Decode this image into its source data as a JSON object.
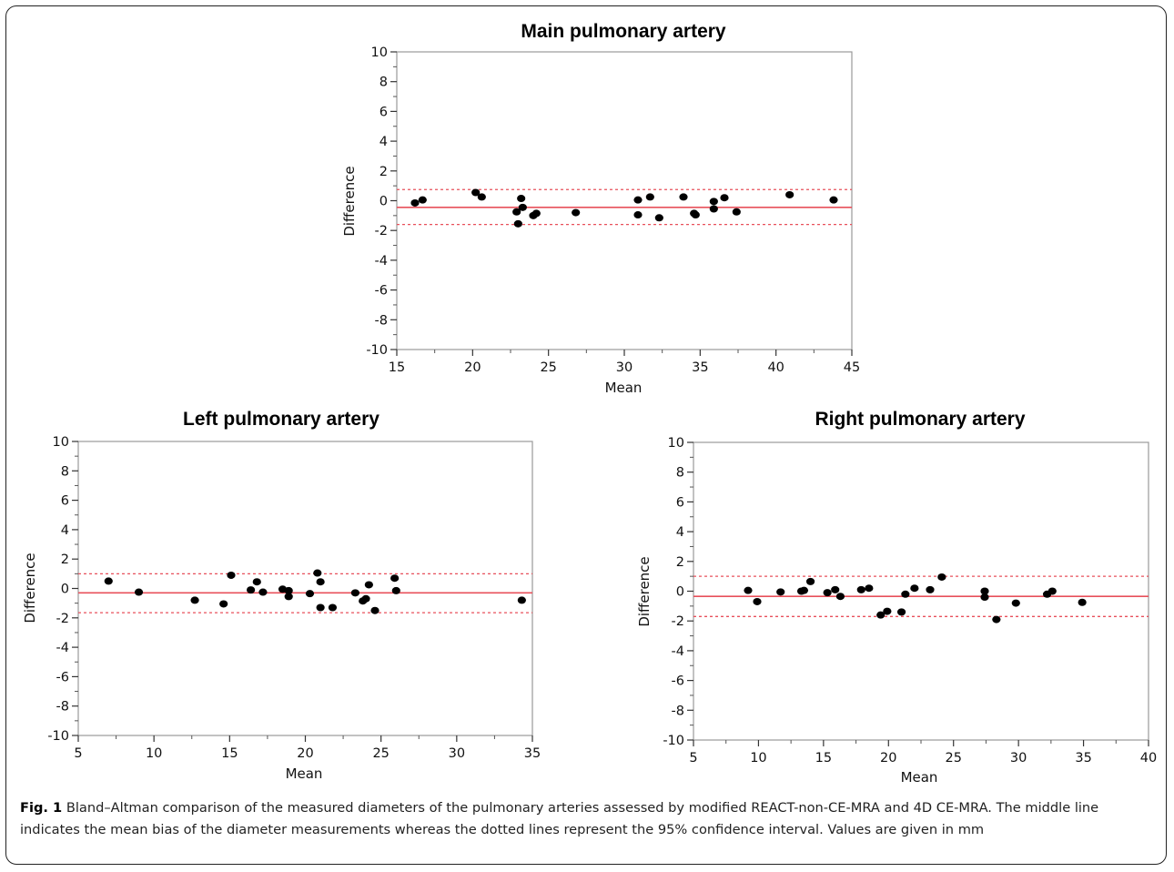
{
  "figure_label": "Fig. 1",
  "caption": "Bland–Altman comparison of the measured diameters of the pulmonary arteries assessed by modified REACT-non-CE-MRA and 4D CE-MRA. The middle line indicates the mean bias of the diameter measurements whereas the dotted lines represent the 95% confidence interval. Values are given in mm",
  "colors": {
    "mean_line": "#e8505b",
    "limit_line": "#e8505b",
    "points": "#000000",
    "axes": "#999999"
  },
  "chart_data": [
    {
      "type": "scatter",
      "title": "Main pulmonary artery",
      "xlabel": "Mean",
      "ylabel": "Difference",
      "xlim": [
        15,
        45
      ],
      "ylim": [
        -10,
        10
      ],
      "xticks": [
        15,
        20,
        25,
        30,
        35,
        40,
        45
      ],
      "yticks": [
        -10,
        -8,
        -6,
        -4,
        -2,
        0,
        2,
        4,
        6,
        8,
        10
      ],
      "mean_bias": -0.45,
      "upper_limit": 0.75,
      "lower_limit": -1.6,
      "points": [
        [
          16.2,
          -0.15
        ],
        [
          16.7,
          0.05
        ],
        [
          20.2,
          0.55
        ],
        [
          20.6,
          0.25
        ],
        [
          22.9,
          -0.75
        ],
        [
          23.0,
          -1.55
        ],
        [
          23.2,
          0.15
        ],
        [
          23.3,
          -0.45
        ],
        [
          24.0,
          -1.0
        ],
        [
          24.2,
          -0.85
        ],
        [
          26.8,
          -0.8
        ],
        [
          30.9,
          0.05
        ],
        [
          30.9,
          -0.95
        ],
        [
          31.7,
          0.25
        ],
        [
          32.3,
          -1.15
        ],
        [
          33.9,
          0.25
        ],
        [
          34.6,
          -0.85
        ],
        [
          34.7,
          -0.95
        ],
        [
          35.9,
          -0.05
        ],
        [
          35.9,
          -0.55
        ],
        [
          36.6,
          0.2
        ],
        [
          37.4,
          -0.75
        ],
        [
          40.9,
          0.4
        ],
        [
          43.8,
          0.05
        ]
      ]
    },
    {
      "type": "scatter",
      "title": "Left pulmonary artery",
      "xlabel": "Mean",
      "ylabel": "Difference",
      "xlim": [
        5,
        35
      ],
      "ylim": [
        -10,
        10
      ],
      "xticks": [
        5,
        10,
        15,
        20,
        25,
        30,
        35
      ],
      "yticks": [
        -10,
        -8,
        -6,
        -4,
        -2,
        0,
        2,
        4,
        6,
        8,
        10
      ],
      "mean_bias": -0.3,
      "upper_limit": 1.0,
      "lower_limit": -1.65,
      "points": [
        [
          7.0,
          0.5
        ],
        [
          9.0,
          -0.25
        ],
        [
          12.7,
          -0.8
        ],
        [
          14.6,
          -1.05
        ],
        [
          15.1,
          0.9
        ],
        [
          16.4,
          -0.1
        ],
        [
          16.8,
          0.45
        ],
        [
          17.2,
          -0.25
        ],
        [
          18.5,
          -0.05
        ],
        [
          18.9,
          -0.55
        ],
        [
          18.9,
          -0.15
        ],
        [
          20.3,
          -0.35
        ],
        [
          20.8,
          1.05
        ],
        [
          21.0,
          -1.3
        ],
        [
          21.0,
          0.45
        ],
        [
          21.8,
          -1.3
        ],
        [
          23.3,
          -0.3
        ],
        [
          23.8,
          -0.85
        ],
        [
          24.0,
          -0.7
        ],
        [
          24.2,
          0.25
        ],
        [
          24.6,
          -1.5
        ],
        [
          25.9,
          0.7
        ],
        [
          26.0,
          -0.15
        ],
        [
          34.3,
          -0.8
        ]
      ]
    },
    {
      "type": "scatter",
      "title": "Right pulmonary artery",
      "xlabel": "Mean",
      "ylabel": "Difference",
      "xlim": [
        5,
        40
      ],
      "ylim": [
        -10,
        10
      ],
      "xticks": [
        5,
        10,
        15,
        20,
        25,
        30,
        35,
        40
      ],
      "yticks": [
        -10,
        -8,
        -6,
        -4,
        -2,
        0,
        2,
        4,
        6,
        8,
        10
      ],
      "mean_bias": -0.35,
      "upper_limit": 1.0,
      "lower_limit": -1.7,
      "points": [
        [
          9.2,
          0.05
        ],
        [
          9.9,
          -0.7
        ],
        [
          11.7,
          -0.05
        ],
        [
          13.3,
          0.0
        ],
        [
          13.5,
          0.05
        ],
        [
          14.0,
          0.65
        ],
        [
          15.3,
          -0.1
        ],
        [
          15.9,
          0.1
        ],
        [
          16.3,
          -0.35
        ],
        [
          17.9,
          0.1
        ],
        [
          18.5,
          0.2
        ],
        [
          19.4,
          -1.6
        ],
        [
          19.9,
          -1.35
        ],
        [
          21.0,
          -1.4
        ],
        [
          21.3,
          -0.2
        ],
        [
          22.0,
          0.2
        ],
        [
          23.2,
          0.1
        ],
        [
          24.1,
          0.95
        ],
        [
          27.4,
          -0.4
        ],
        [
          27.4,
          0.0
        ],
        [
          28.3,
          -1.9
        ],
        [
          29.8,
          -0.8
        ],
        [
          32.2,
          -0.2
        ],
        [
          32.6,
          0.0
        ],
        [
          34.9,
          -0.75
        ]
      ]
    }
  ]
}
